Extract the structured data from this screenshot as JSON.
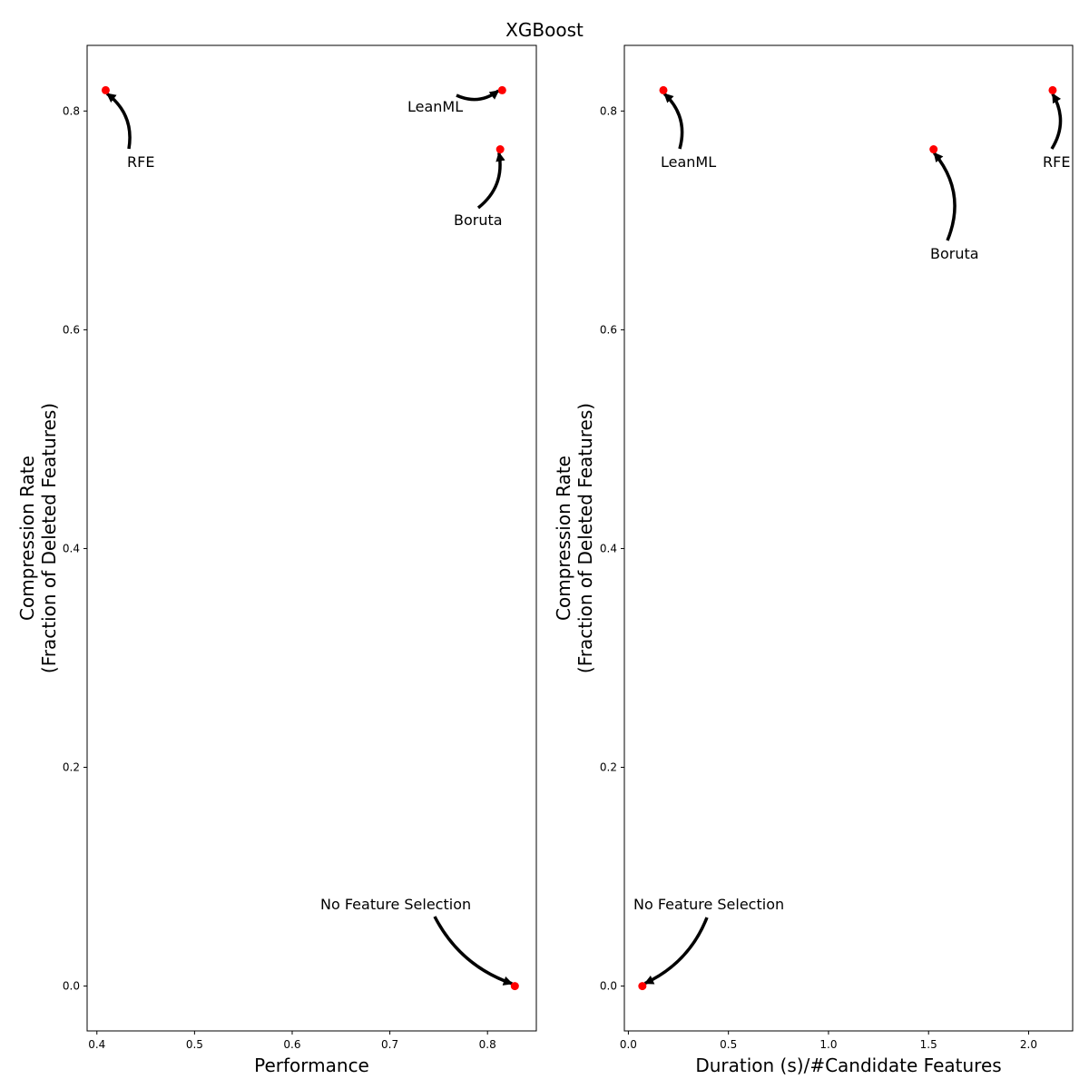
{
  "figure": {
    "title": "XGBoost"
  },
  "chart_data": [
    {
      "type": "scatter",
      "xlabel": "Performance",
      "ylabel_lines": [
        "Compression Rate",
        "(Fraction of Deleted Features)"
      ],
      "xlim": [
        0.39,
        0.85
      ],
      "ylim": [
        -0.041,
        0.86
      ],
      "xticks": [
        0.4,
        0.5,
        0.6,
        0.7,
        0.8
      ],
      "xtick_labels": [
        "0.4",
        "0.5",
        "0.6",
        "0.7",
        "0.8"
      ],
      "yticks": [
        0.0,
        0.2,
        0.4,
        0.6,
        0.8
      ],
      "ytick_labels": [
        "0.0",
        "0.2",
        "0.4",
        "0.6",
        "0.8"
      ],
      "marker_color": "#ff0000",
      "grid": false,
      "points": [
        {
          "label": "RFE",
          "x": 0.409,
          "y": 0.819
        },
        {
          "label": "LeanML",
          "x": 0.815,
          "y": 0.819
        },
        {
          "label": "Boruta",
          "x": 0.813,
          "y": 0.765
        },
        {
          "label": "No Feature Selection",
          "x": 0.828,
          "y": 0.0
        }
      ]
    },
    {
      "type": "scatter",
      "xlabel": "Duration (s)/#Candidate Features",
      "ylabel_lines": [
        "Compression Rate",
        "(Fraction of Deleted Features)"
      ],
      "xlim": [
        -0.02,
        2.22
      ],
      "ylim": [
        -0.041,
        0.86
      ],
      "xticks": [
        0.0,
        0.5,
        1.0,
        1.5,
        2.0
      ],
      "xtick_labels": [
        "0.0",
        "0.5",
        "1.0",
        "1.5",
        "2.0"
      ],
      "yticks": [
        0.0,
        0.2,
        0.4,
        0.6,
        0.8
      ],
      "ytick_labels": [
        "0.0",
        "0.2",
        "0.4",
        "0.6",
        "0.8"
      ],
      "marker_color": "#ff0000",
      "grid": false,
      "points": [
        {
          "label": "LeanML",
          "x": 0.175,
          "y": 0.819
        },
        {
          "label": "RFE",
          "x": 2.12,
          "y": 0.819
        },
        {
          "label": "Boruta",
          "x": 1.525,
          "y": 0.765
        },
        {
          "label": "No Feature Selection",
          "x": 0.07,
          "y": 0.0
        }
      ]
    }
  ]
}
